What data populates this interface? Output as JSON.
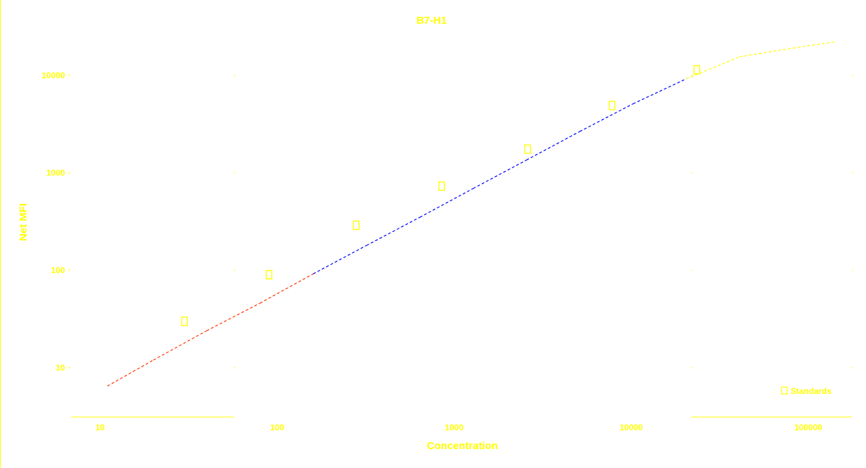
{
  "chart_data": {
    "type": "scatter",
    "title": "B7-H1",
    "xlabel": "Concentration",
    "ylabel": "Net MFI",
    "xscale": "log",
    "yscale": "log",
    "xlim": [
      7,
      180000
    ],
    "ylim": [
      4.5,
      22000
    ],
    "x_ticks": [
      10,
      100,
      1000,
      10000,
      100000
    ],
    "x_tick_labels": [
      "10",
      "100",
      "1000",
      "10000",
      "100000"
    ],
    "y_ticks": [
      10,
      100,
      1000,
      10000
    ],
    "y_tick_labels": [
      "10",
      "100",
      "1000",
      "10000"
    ],
    "legend": {
      "position": "bottom-right",
      "entries": [
        "Standards"
      ]
    },
    "series": [
      {
        "name": "Standards",
        "marker": "square",
        "color": "#ffff00",
        "points": [
          {
            "x": 30,
            "y": 30
          },
          {
            "x": 90,
            "y": 90
          },
          {
            "x": 280,
            "y": 290
          },
          {
            "x": 850,
            "y": 730
          },
          {
            "x": 2600,
            "y": 1750
          },
          {
            "x": 7800,
            "y": 4900
          },
          {
            "x": 23500,
            "y": 11400
          }
        ]
      },
      {
        "name": "Fit curve",
        "style": "line",
        "colors": [
          "#ff3300",
          "#0000ff",
          "#ffff00"
        ],
        "x": [
          11,
          20,
          40,
          80,
          160,
          320,
          640,
          1280,
          2560,
          5120,
          10240,
          20480,
          40960,
          81920,
          140000
        ],
        "y": [
          6.5,
          12,
          24,
          46,
          92,
          180,
          350,
          690,
          1350,
          2650,
          5100,
          9200,
          15500,
          19000,
          22000
        ]
      }
    ]
  }
}
